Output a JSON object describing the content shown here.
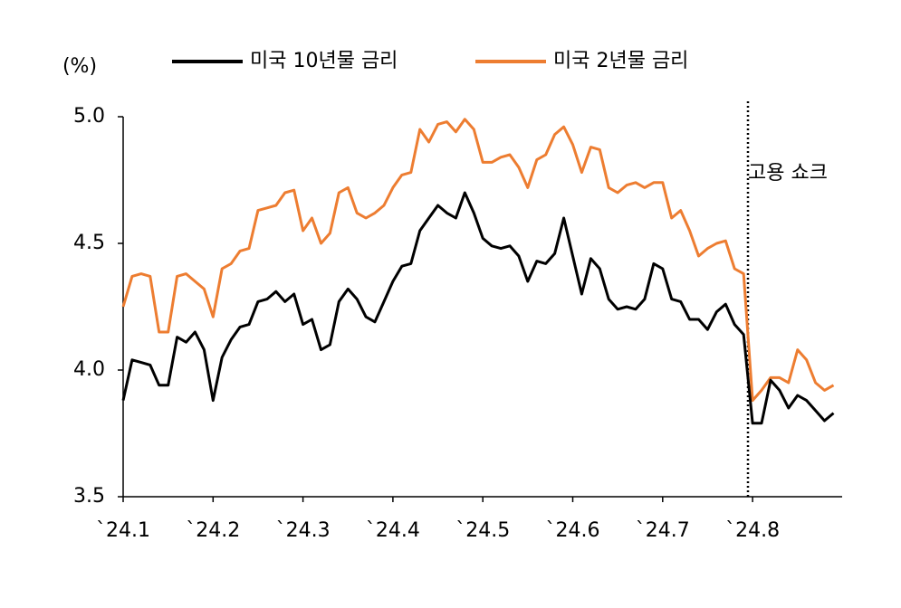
{
  "chart_data": {
    "type": "line",
    "y_label": "(%)",
    "annotation": "고용 쇼크",
    "categories": [
      "`24.1",
      null,
      null,
      null,
      null,
      null,
      null,
      null,
      null,
      null,
      "`24.2",
      null,
      null,
      null,
      null,
      null,
      null,
      null,
      null,
      null,
      "`24.3",
      null,
      null,
      null,
      null,
      null,
      null,
      null,
      null,
      null,
      "`24.4",
      null,
      null,
      null,
      null,
      null,
      null,
      null,
      null,
      null,
      "`24.5",
      null,
      null,
      null,
      null,
      null,
      null,
      null,
      null,
      null,
      "`24.6",
      null,
      null,
      null,
      null,
      null,
      null,
      null,
      null,
      null,
      "`24.7",
      null,
      null,
      null,
      null,
      null,
      null,
      null,
      null,
      null,
      "`24.8",
      null,
      null,
      null,
      null,
      null,
      null,
      null,
      null,
      null
    ],
    "series": [
      {
        "name": "미국 10년물 금리",
        "color": "#000000",
        "values": [
          3.88,
          4.04,
          4.03,
          4.02,
          3.94,
          3.94,
          4.13,
          4.11,
          4.15,
          4.08,
          3.88,
          4.05,
          4.12,
          4.17,
          4.18,
          4.27,
          4.28,
          4.31,
          4.27,
          4.3,
          4.18,
          4.2,
          4.08,
          4.1,
          4.27,
          4.32,
          4.28,
          4.21,
          4.19,
          4.27,
          4.35,
          4.41,
          4.42,
          4.55,
          4.6,
          4.65,
          4.62,
          4.6,
          4.7,
          4.62,
          4.52,
          4.49,
          4.48,
          4.49,
          4.45,
          4.35,
          4.43,
          4.42,
          4.46,
          4.6,
          4.45,
          4.3,
          4.44,
          4.4,
          4.28,
          4.24,
          4.25,
          4.24,
          4.28,
          4.42,
          4.4,
          4.28,
          4.27,
          4.2,
          4.2,
          4.16,
          4.23,
          4.26,
          4.18,
          4.14,
          3.79,
          3.79,
          3.96,
          3.92,
          3.85,
          3.9,
          3.88,
          3.84,
          3.8,
          3.83
        ]
      },
      {
        "name": "미국 2년물 금리",
        "color": "#ed7d31",
        "values": [
          4.25,
          4.37,
          4.38,
          4.37,
          4.15,
          4.15,
          4.37,
          4.38,
          4.35,
          4.32,
          4.21,
          4.4,
          4.42,
          4.47,
          4.48,
          4.63,
          4.64,
          4.65,
          4.7,
          4.71,
          4.55,
          4.6,
          4.5,
          4.54,
          4.7,
          4.72,
          4.62,
          4.6,
          4.62,
          4.65,
          4.72,
          4.77,
          4.78,
          4.95,
          4.9,
          4.97,
          4.98,
          4.94,
          4.99,
          4.95,
          4.82,
          4.82,
          4.84,
          4.85,
          4.8,
          4.72,
          4.83,
          4.85,
          4.93,
          4.96,
          4.89,
          4.78,
          4.88,
          4.87,
          4.72,
          4.7,
          4.73,
          4.74,
          4.72,
          4.74,
          4.74,
          4.6,
          4.63,
          4.55,
          4.45,
          4.48,
          4.5,
          4.51,
          4.4,
          4.38,
          3.88,
          3.92,
          3.97,
          3.97,
          3.95,
          4.08,
          4.04,
          3.95,
          3.92,
          3.94
        ]
      }
    ],
    "ylim": [
      3.5,
      5.0
    ],
    "yticks": [
      3.5,
      {
        "value": 4.0,
        "label": "4.0"
      },
      4.5,
      {
        "value": 5.0,
        "label": "5.0"
      }
    ]
  }
}
